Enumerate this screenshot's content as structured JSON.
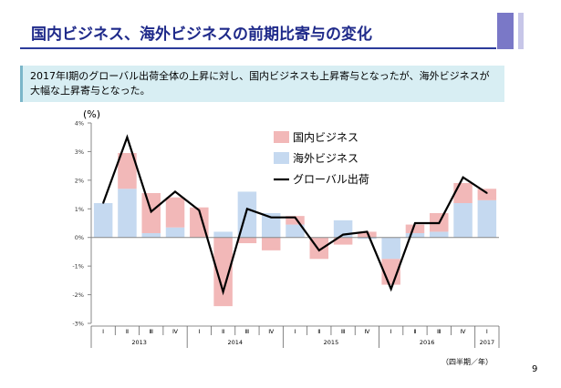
{
  "slide": {
    "title": "国内ビジネス、海外ビジネスの前期比寄与の変化",
    "summary": "2017年Ⅰ期のグローバル出荷全体の上昇に対し、国内ビジネスも上昇寄与となったが、海外ビジネスが大幅な上昇寄与となった。",
    "page_number": "9"
  },
  "chart_data": {
    "type": "bar",
    "y_unit": "(%)",
    "x_unit": "（四半期／年）",
    "ylim": [
      -3,
      4
    ],
    "y_ticks": [
      "4%",
      "3%",
      "2%",
      "1%",
      "0%",
      "-1%",
      "-2%",
      "-3%"
    ],
    "quarters": [
      "Ⅰ",
      "Ⅱ",
      "Ⅲ",
      "Ⅳ",
      "Ⅰ",
      "Ⅱ",
      "Ⅲ",
      "Ⅳ",
      "Ⅰ",
      "Ⅱ",
      "Ⅲ",
      "Ⅳ",
      "Ⅰ",
      "Ⅱ",
      "Ⅲ",
      "Ⅳ",
      "Ⅰ"
    ],
    "years": [
      {
        "label": "2013",
        "span": 4
      },
      {
        "label": "2014",
        "span": 4
      },
      {
        "label": "2015",
        "span": 4
      },
      {
        "label": "2016",
        "span": 4
      },
      {
        "label": "2017",
        "span": 1
      }
    ],
    "series": [
      {
        "name": "国内ビジネス",
        "kind": "bar",
        "color": "#f2b8b8",
        "values": [
          0.0,
          1.25,
          1.4,
          1.05,
          1.05,
          -2.4,
          -0.2,
          -0.45,
          0.3,
          -0.75,
          -0.25,
          0.2,
          -0.9,
          0.3,
          0.65,
          0.7,
          0.4
        ]
      },
      {
        "name": "海外ビジネス",
        "kind": "bar",
        "color": "#c5d9f0",
        "values": [
          1.2,
          1.7,
          0.15,
          0.35,
          0.0,
          0.2,
          1.6,
          0.85,
          0.45,
          0.0,
          0.6,
          -0.05,
          -0.75,
          0.15,
          0.2,
          1.2,
          1.3
        ]
      },
      {
        "name": "グローバル出荷",
        "kind": "line",
        "color": "#000000",
        "values": [
          1.2,
          3.5,
          0.9,
          1.6,
          0.95,
          -1.9,
          1.0,
          0.7,
          0.7,
          -0.45,
          0.1,
          0.2,
          -1.8,
          0.5,
          0.5,
          2.1,
          1.55
        ]
      }
    ]
  }
}
